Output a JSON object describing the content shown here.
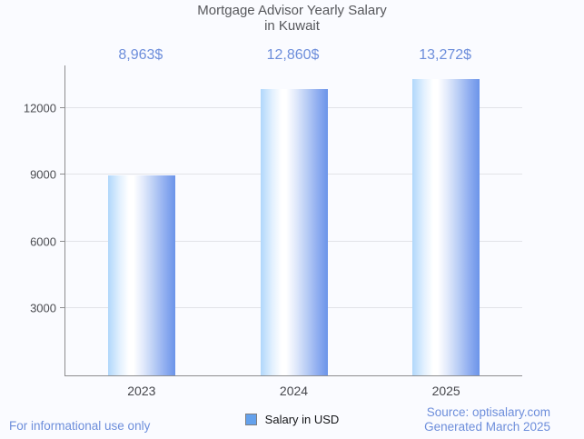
{
  "title": {
    "line1": "Mortgage Advisor Yearly Salary",
    "line2": "in Kuwait"
  },
  "legend": {
    "label": "Salary in USD",
    "swatch_color": "#64a1ec"
  },
  "footer": {
    "disclaimer": "For informational use only",
    "source": "Source: optisalary.com",
    "generated": "Generated March 2025"
  },
  "colors": {
    "background": "#fafbff",
    "accent_blue_text": "#6d8edb",
    "bar_edge_light": "#b0d7fb",
    "bar_center": "#ffffff",
    "bar_edge_dark": "#6b94e9",
    "axis": "#8d8d8f",
    "gridline": "#e2e3e8",
    "title_text": "#56575b"
  },
  "chart_data": {
    "type": "bar",
    "title": "Mortgage Advisor Yearly Salary in Kuwait",
    "categories": [
      "2023",
      "2024",
      "2025"
    ],
    "values": [
      8963,
      12860,
      13272
    ],
    "value_labels": [
      "8,963$",
      "12,860$",
      "13,272$"
    ],
    "series_name": "Salary in USD",
    "xlabel": "",
    "ylabel": "",
    "yticks": [
      3000,
      6000,
      9000,
      12000
    ],
    "ylim": [
      0,
      13900
    ],
    "grid": true,
    "legend_position": "bottom"
  }
}
